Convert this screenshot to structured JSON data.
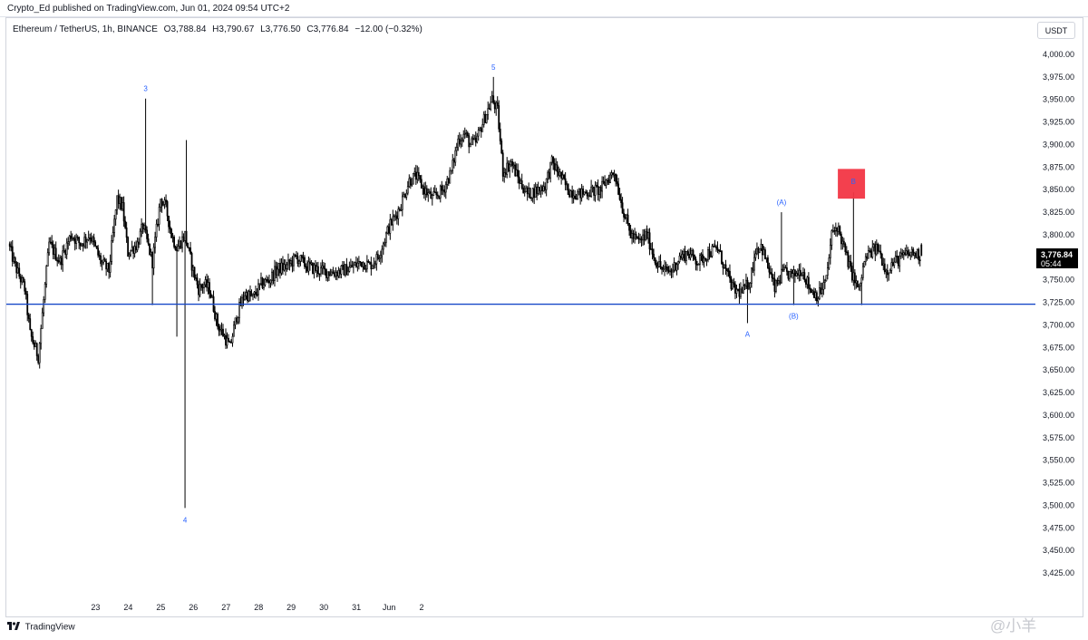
{
  "header": {
    "published": "Crypto_Ed published on TradingView.com, Jun 01, 2024 09:54 UTC+2"
  },
  "legend": {
    "symbol": "Ethereum / TetherUS, 1h, BINANCE",
    "open": "O3,788.84",
    "high": "H3,790.67",
    "low": "L3,776.50",
    "close": "C3,776.84",
    "change": "−12.00 (−0.32%)"
  },
  "currency_button": "USDT",
  "price_badge": {
    "price": "3,776.84",
    "countdown": "05:44"
  },
  "footer": {
    "brand": "TradingView"
  },
  "watermark": "@小羊",
  "colors": {
    "up": "#f0f0f0",
    "down": "#000000",
    "wick": "#000000",
    "support_line": "#1848c8",
    "label_blue": "#2962ff",
    "highlight": "#f23645"
  },
  "chart_data": {
    "type": "candlestick",
    "title": "",
    "ylim": [
      3400,
      4025
    ],
    "yticks": [
      "4,000.00",
      "3,975.00",
      "3,950.00",
      "3,925.00",
      "3,900.00",
      "3,875.00",
      "3,850.00",
      "3,825.00",
      "3,800.00",
      "3,775.00",
      "3,750.00",
      "3,725.00",
      "3,700.00",
      "3,675.00",
      "3,650.00",
      "3,625.00",
      "3,600.00",
      "3,575.00",
      "3,550.00",
      "3,525.00",
      "3,500.00",
      "3,475.00",
      "3,450.00",
      "3,425.00"
    ],
    "xticks": [
      "23",
      "24",
      "25",
      "26",
      "27",
      "28",
      "29",
      "30",
      "31",
      "Jun",
      "2"
    ],
    "support_level": 3723,
    "last_price": 3776.84,
    "anchors": [
      [
        0,
        3790
      ],
      [
        5,
        3765
      ],
      [
        12,
        3740
      ],
      [
        16,
        3690
      ],
      [
        22,
        3665
      ],
      [
        30,
        3790
      ],
      [
        38,
        3770
      ],
      [
        46,
        3800
      ],
      [
        53,
        3790
      ],
      [
        60,
        3800
      ],
      [
        68,
        3770
      ],
      [
        74,
        3760
      ],
      [
        80,
        3840
      ],
      [
        84,
        3830
      ],
      [
        88,
        3780
      ],
      [
        95,
        3790
      ],
      [
        99,
        3810
      ],
      [
        106,
        3770
      ],
      [
        112,
        3840
      ],
      [
        116,
        3830
      ],
      [
        120,
        3800
      ],
      [
        124,
        3785
      ],
      [
        130,
        3800
      ],
      [
        136,
        3760
      ],
      [
        140,
        3740
      ],
      [
        144,
        3745
      ],
      [
        148,
        3740
      ],
      [
        154,
        3700
      ],
      [
        158,
        3690
      ],
      [
        163,
        3675
      ],
      [
        168,
        3710
      ],
      [
        174,
        3735
      ],
      [
        180,
        3730
      ],
      [
        186,
        3745
      ],
      [
        192,
        3750
      ],
      [
        198,
        3762
      ],
      [
        205,
        3765
      ],
      [
        212,
        3775
      ],
      [
        220,
        3765
      ],
      [
        230,
        3760
      ],
      [
        240,
        3758
      ],
      [
        250,
        3762
      ],
      [
        260,
        3770
      ],
      [
        266,
        3766
      ],
      [
        272,
        3775
      ],
      [
        280,
        3808
      ],
      [
        288,
        3830
      ],
      [
        295,
        3860
      ],
      [
        300,
        3865
      ],
      [
        306,
        3850
      ],
      [
        312,
        3840
      ],
      [
        320,
        3850
      ],
      [
        326,
        3870
      ],
      [
        331,
        3905
      ],
      [
        336,
        3912
      ],
      [
        340,
        3900
      ],
      [
        344,
        3902
      ],
      [
        348,
        3920
      ],
      [
        352,
        3935
      ],
      [
        356,
        3950
      ],
      [
        360,
        3937
      ],
      [
        364,
        3870
      ],
      [
        370,
        3880
      ],
      [
        376,
        3860
      ],
      [
        382,
        3845
      ],
      [
        390,
        3850
      ],
      [
        395,
        3855
      ],
      [
        400,
        3880
      ],
      [
        406,
        3866
      ],
      [
        412,
        3849
      ],
      [
        420,
        3845
      ],
      [
        428,
        3848
      ],
      [
        436,
        3850
      ],
      [
        440,
        3860
      ],
      [
        446,
        3870
      ],
      [
        452,
        3830
      ],
      [
        458,
        3800
      ],
      [
        464,
        3792
      ],
      [
        470,
        3800
      ],
      [
        476,
        3772
      ],
      [
        482,
        3760
      ],
      [
        488,
        3760
      ],
      [
        494,
        3775
      ],
      [
        500,
        3780
      ],
      [
        508,
        3770
      ],
      [
        515,
        3780
      ],
      [
        522,
        3785
      ],
      [
        528,
        3760
      ],
      [
        534,
        3738
      ],
      [
        540,
        3736
      ],
      [
        546,
        3750
      ],
      [
        550,
        3784
      ],
      [
        554,
        3788
      ],
      [
        560,
        3760
      ],
      [
        564,
        3740
      ],
      [
        570,
        3758
      ],
      [
        578,
        3755
      ],
      [
        584,
        3762
      ],
      [
        590,
        3740
      ],
      [
        596,
        3732
      ],
      [
        602,
        3750
      ],
      [
        606,
        3800
      ],
      [
        610,
        3810
      ],
      [
        614,
        3790
      ],
      [
        620,
        3760
      ],
      [
        626,
        3738
      ],
      [
        630,
        3770
      ],
      [
        634,
        3780
      ],
      [
        640,
        3785
      ],
      [
        646,
        3760
      ],
      [
        652,
        3770
      ],
      [
        660,
        3777
      ],
      [
        665,
        3780
      ],
      [
        671,
        3777
      ]
    ],
    "wave_labels": [
      {
        "text": "3",
        "index": 100,
        "price": 3951
      },
      {
        "text": "4",
        "index": 129,
        "price": 3497
      },
      {
        "text": "5",
        "index": 356,
        "price": 3975
      },
      {
        "text": "A",
        "index": 543,
        "price": 3703
      },
      {
        "text": "(A)",
        "index": 568,
        "price": 3825
      },
      {
        "text": "(B)",
        "index": 577,
        "price": 3723
      },
      {
        "text": "B",
        "index": 621,
        "price": 3848
      }
    ],
    "highlight_box": {
      "index_from": 610,
      "index_to": 630,
      "price_low": 3840,
      "price_high": 3873
    }
  }
}
